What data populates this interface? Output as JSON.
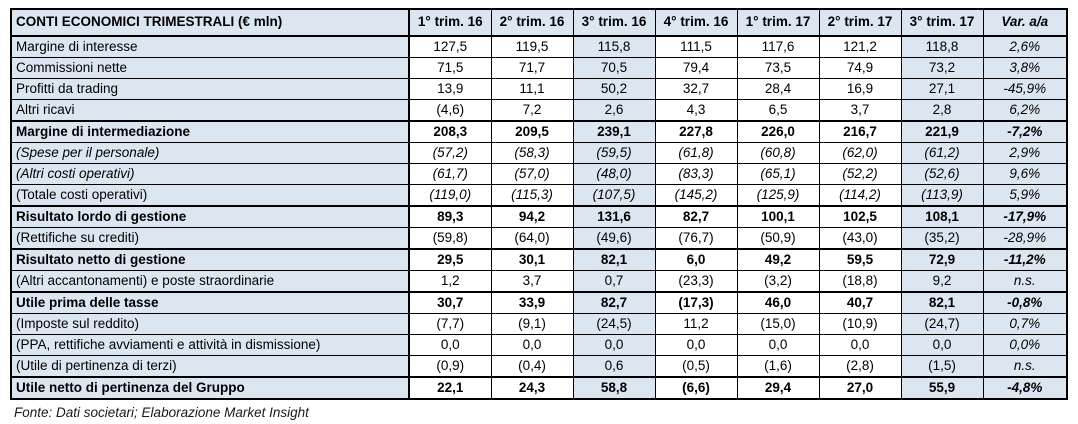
{
  "colors": {
    "highlight_fill": "#dce6f1",
    "cell_fill": "#ffffff",
    "border": "#000000",
    "text": "#000000"
  },
  "footer": {
    "source_note": "Fonte: Dati societari; Elaborazione Market Insight"
  },
  "chart_data": {
    "type": "table",
    "title": "CONTI ECONOMICI TRIMESTRALI (€ mln)",
    "columns": [
      "1° trim. 16",
      "2° trim. 16",
      "3° trim. 16",
      "4° trim. 16",
      "1° trim. 17",
      "2° trim. 17",
      "3° trim. 17",
      "Var. a/a"
    ],
    "highlighted_value_columns": [
      2,
      6
    ],
    "rows": [
      {
        "label": "Margine di interesse",
        "values": [
          "127,5",
          "119,5",
          "115,8",
          "111,5",
          "117,6",
          "121,2",
          "118,8"
        ],
        "var": "2,6%",
        "emphasis": "none"
      },
      {
        "label": "Commissioni nette",
        "values": [
          "71,5",
          "71,7",
          "70,5",
          "79,4",
          "73,5",
          "74,9",
          "73,2"
        ],
        "var": "3,8%",
        "emphasis": "none"
      },
      {
        "label": "Profitti da trading",
        "values": [
          "13,9",
          "11,1",
          "50,2",
          "32,7",
          "28,4",
          "16,9",
          "27,1"
        ],
        "var": "-45,9%",
        "emphasis": "none"
      },
      {
        "label": "Altri ricavi",
        "values": [
          "(4,6)",
          "7,2",
          "2,6",
          "4,3",
          "6,5",
          "3,7",
          "2,8"
        ],
        "var": "6,2%",
        "emphasis": "none"
      },
      {
        "label": "Margine di intermediazione",
        "values": [
          "208,3",
          "209,5",
          "239,1",
          "227,8",
          "226,0",
          "216,7",
          "221,9"
        ],
        "var": "-7,2%",
        "emphasis": "bold"
      },
      {
        "label": "(Spese per il personale)",
        "values": [
          "(57,2)",
          "(58,3)",
          "(59,5)",
          "(61,8)",
          "(60,8)",
          "(62,0)",
          "(61,2)"
        ],
        "var": "2,9%",
        "emphasis": "italic"
      },
      {
        "label": "(Altri costi operativi)",
        "values": [
          "(61,7)",
          "(57,0)",
          "(48,0)",
          "(83,3)",
          "(65,1)",
          "(52,2)",
          "(52,6)"
        ],
        "var": "9,6%",
        "emphasis": "italic"
      },
      {
        "label": "(Totale costi operativi)",
        "values": [
          "(119,0)",
          "(115,3)",
          "(107,5)",
          "(145,2)",
          "(125,9)",
          "(114,2)",
          "(113,9)"
        ],
        "var": "5,9%",
        "emphasis": "italic_nums"
      },
      {
        "label": "Risultato lordo di gestione",
        "values": [
          "89,3",
          "94,2",
          "131,6",
          "82,7",
          "100,1",
          "102,5",
          "108,1"
        ],
        "var": "-17,9%",
        "emphasis": "bold"
      },
      {
        "label": "(Rettifiche su crediti)",
        "values": [
          "(59,8)",
          "(64,0)",
          "(49,6)",
          "(76,7)",
          "(50,9)",
          "(43,0)",
          "(35,2)"
        ],
        "var": "-28,9%",
        "emphasis": "none"
      },
      {
        "label": "Risultato netto di gestione",
        "values": [
          "29,5",
          "30,1",
          "82,1",
          "6,0",
          "49,2",
          "59,5",
          "72,9"
        ],
        "var": "-11,2%",
        "emphasis": "bold"
      },
      {
        "label": "(Altri accantonamenti) e poste straordinarie",
        "values": [
          "1,2",
          "3,7",
          "0,7",
          "(23,3)",
          "(3,2)",
          "(18,8)",
          "9,2"
        ],
        "var": "n.s.",
        "emphasis": "none"
      },
      {
        "label": "Utile prima delle tasse",
        "values": [
          "30,7",
          "33,9",
          "82,7",
          "(17,3)",
          "46,0",
          "40,7",
          "82,1"
        ],
        "var": "-0,8%",
        "emphasis": "bold"
      },
      {
        "label": "(Imposte sul reddito)",
        "values": [
          "(7,7)",
          "(9,1)",
          "(24,5)",
          "11,2",
          "(15,0)",
          "(10,9)",
          "(24,7)"
        ],
        "var": "0,7%",
        "emphasis": "none"
      },
      {
        "label": "(PPA, rettifiche avviamenti e attività in dismissione)",
        "values": [
          "0,0",
          "0,0",
          "0,0",
          "0,0",
          "0,0",
          "0,0",
          "0,0"
        ],
        "var": "0,0%",
        "emphasis": "none"
      },
      {
        "label": "(Utile di pertinenza di terzi)",
        "values": [
          "(0,9)",
          "(0,4)",
          "0,6",
          "(0,5)",
          "(1,6)",
          "(2,8)",
          "(1,5)"
        ],
        "var": "n.s.",
        "emphasis": "none"
      },
      {
        "label": "Utile netto di pertinenza del Gruppo",
        "values": [
          "22,1",
          "24,3",
          "58,8",
          "(6,6)",
          "29,4",
          "27,0",
          "55,9"
        ],
        "var": "-4,8%",
        "emphasis": "bold"
      }
    ]
  }
}
